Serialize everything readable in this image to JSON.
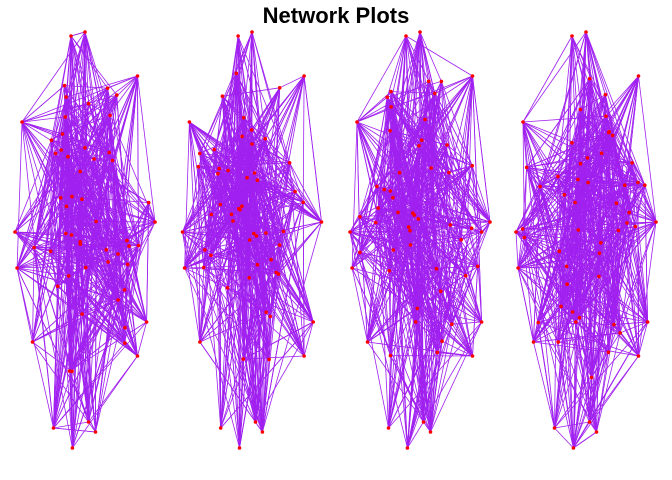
{
  "title": "Network Plots",
  "style": {
    "edge_color": "#a020f0",
    "node_color": "#ff0000",
    "background": "#ffffff"
  },
  "panels": [
    {
      "id": "network-1",
      "node_count": 60
    },
    {
      "id": "network-2",
      "node_count": 60
    },
    {
      "id": "network-3",
      "node_count": 60
    },
    {
      "id": "network-4",
      "node_count": 60
    }
  ]
}
